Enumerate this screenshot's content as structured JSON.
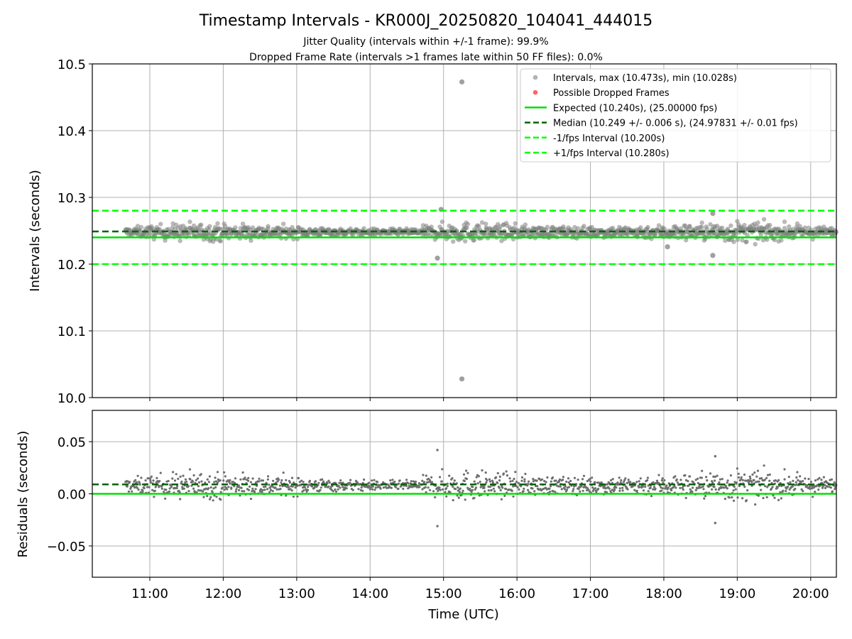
{
  "title": "Timestamp Intervals - KR000J_20250820_104041_444015",
  "subtitle_lines": [
    "Jitter Quality (intervals within +/-1 frame): 99.9%",
    "Dropped Frame Rate (intervals >1 frames late within 50 FF files): 0.0%"
  ],
  "colors": {
    "intervals": "#808080",
    "dropped": "#ff0000",
    "expected": "#00e000",
    "median": "#006400",
    "bounds": "#00ff00",
    "grid": "#b0b0b0"
  },
  "chart_data": [
    {
      "type": "scatter",
      "ylabel": "Intervals (seconds)",
      "ylim": [
        10.0,
        10.5
      ],
      "yticks": [
        10.0,
        10.1,
        10.2,
        10.3,
        10.4,
        10.5
      ],
      "ytick_labels": [
        "10.0",
        "10.1",
        "10.2",
        "10.3",
        "10.4",
        "10.5"
      ],
      "grid": true,
      "legend_placement": "top-right",
      "legend": [
        "Intervals, max (10.473s), min (10.028s)",
        "Possible Dropped Frames",
        "Expected (10.240s), (25.00000 fps)",
        "Median (10.249 +/- 0.006 s), (24.97831 +/- 0.01 fps)",
        "-1/fps Interval (10.200s)",
        "+1/fps Interval (10.280s)"
      ],
      "lines": {
        "expected": 10.24,
        "median": 10.249,
        "minus_one_fps": 10.2,
        "plus_one_fps": 10.28
      },
      "series_profile": {
        "time_start": "10:40",
        "time_end": "20:20",
        "center": 10.248,
        "band_halfwidth": [
          {
            "t": "10:40",
            "h": 0.006
          },
          {
            "t": "11:30",
            "h": 0.012
          },
          {
            "t": "12:30",
            "h": 0.01
          },
          {
            "t": "13:30",
            "h": 0.005
          },
          {
            "t": "14:30",
            "h": 0.004
          },
          {
            "t": "15:10",
            "h": 0.014
          },
          {
            "t": "15:50",
            "h": 0.01
          },
          {
            "t": "16:40",
            "h": 0.007
          },
          {
            "t": "17:30",
            "h": 0.008
          },
          {
            "t": "18:30",
            "h": 0.011
          },
          {
            "t": "19:00",
            "h": 0.014
          },
          {
            "t": "19:40",
            "h": 0.01
          },
          {
            "t": "20:20",
            "h": 0.006
          }
        ]
      },
      "outliers": [
        {
          "t": "15:15",
          "y": 10.473
        },
        {
          "t": "15:15",
          "y": 10.028
        },
        {
          "t": "14:58",
          "y": 10.282
        },
        {
          "t": "14:55",
          "y": 10.209
        },
        {
          "t": "18:40",
          "y": 10.276
        },
        {
          "t": "18:40",
          "y": 10.213
        },
        {
          "t": "18:03",
          "y": 10.226
        }
      ]
    },
    {
      "type": "scatter",
      "xlabel": "Time (UTC)",
      "ylabel": "Residuals (seconds)",
      "ylim": [
        -0.08,
        0.08
      ],
      "yticks": [
        -0.05,
        0.0,
        0.05
      ],
      "ytick_labels": [
        "−0.05",
        "0.00",
        "0.05"
      ],
      "xlim": [
        "10:13",
        "20:20"
      ],
      "xticks": [
        "11:00",
        "12:00",
        "13:00",
        "14:00",
        "15:00",
        "16:00",
        "17:00",
        "18:00",
        "19:00",
        "20:00"
      ],
      "grid": true,
      "lines": {
        "expected": 0.0,
        "median": 0.009
      },
      "outliers": [
        {
          "t": "14:55",
          "y": 0.042
        },
        {
          "t": "14:55",
          "y": -0.031
        },
        {
          "t": "18:42",
          "y": 0.036
        },
        {
          "t": "18:42",
          "y": -0.028
        }
      ]
    }
  ]
}
